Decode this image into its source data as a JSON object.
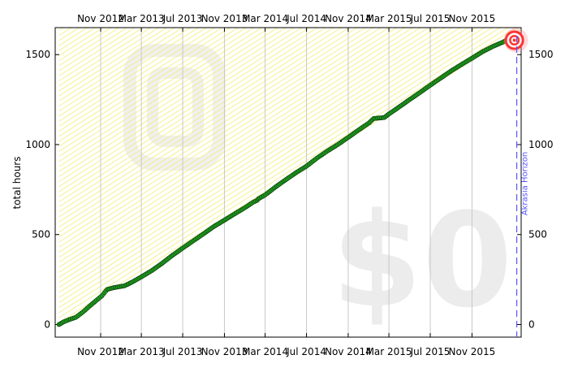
{
  "chart_data": {
    "type": "line",
    "title": "",
    "ylabel": "total hours",
    "xlabel": "",
    "ylim": [
      -70,
      1650
    ],
    "x_range": [
      "2012-06-20",
      "2016-03-25"
    ],
    "y_ticks": [
      0,
      500,
      1000,
      1500
    ],
    "x_ticks": [
      {
        "date": "2012-11-01",
        "label": "Nov 2012"
      },
      {
        "date": "2013-03-01",
        "label": "Mar 2013"
      },
      {
        "date": "2013-07-01",
        "label": "Jul 2013"
      },
      {
        "date": "2013-11-01",
        "label": "Nov 2013"
      },
      {
        "date": "2014-03-01",
        "label": "Mar 2014"
      },
      {
        "date": "2014-07-01",
        "label": "Jul 2014"
      },
      {
        "date": "2014-11-01",
        "label": "Nov 2014"
      },
      {
        "date": "2015-03-01",
        "label": "Mar 2015"
      },
      {
        "date": "2015-07-01",
        "label": "Jul 2015"
      },
      {
        "date": "2015-11-01",
        "label": "Nov 2015"
      }
    ],
    "grid": "vertical",
    "watermark_pledge": "$0",
    "horizon": {
      "date": "2016-03-12",
      "label": "Akrasia Horizon"
    },
    "goal": {
      "date": "2016-03-05",
      "value": 1580
    },
    "series": [
      {
        "points": [
          [
            "2012-07-01",
            0
          ],
          [
            "2012-07-15",
            15
          ],
          [
            "2012-08-01",
            28
          ],
          [
            "2012-08-20",
            40
          ],
          [
            "2012-09-10",
            70
          ],
          [
            "2012-10-01",
            105
          ],
          [
            "2012-10-20",
            135
          ],
          [
            "2012-11-05",
            160
          ],
          [
            "2012-11-20",
            195
          ],
          [
            "2012-12-10",
            205
          ],
          [
            "2012-12-25",
            210
          ],
          [
            "2013-01-10",
            215
          ],
          [
            "2013-02-01",
            235
          ],
          [
            "2013-03-01",
            265
          ],
          [
            "2013-04-01",
            300
          ],
          [
            "2013-05-01",
            340
          ],
          [
            "2013-06-01",
            385
          ],
          [
            "2013-07-01",
            425
          ],
          [
            "2013-08-01",
            465
          ],
          [
            "2013-09-01",
            505
          ],
          [
            "2013-10-01",
            545
          ],
          [
            "2013-11-01",
            580
          ],
          [
            "2013-12-01",
            615
          ],
          [
            "2014-01-01",
            650
          ],
          [
            "2014-01-25",
            680
          ],
          [
            "2014-02-05",
            690
          ],
          [
            "2014-02-10",
            700
          ],
          [
            "2014-03-01",
            720
          ],
          [
            "2014-04-01",
            765
          ],
          [
            "2014-05-01",
            805
          ],
          [
            "2014-06-01",
            845
          ],
          [
            "2014-07-01",
            880
          ],
          [
            "2014-08-01",
            925
          ],
          [
            "2014-09-01",
            965
          ],
          [
            "2014-10-01",
            1000
          ],
          [
            "2014-11-01",
            1040
          ],
          [
            "2014-12-01",
            1080
          ],
          [
            "2015-01-01",
            1120
          ],
          [
            "2015-01-15",
            1145
          ],
          [
            "2015-02-15",
            1150
          ],
          [
            "2015-03-01",
            1170
          ],
          [
            "2015-04-01",
            1210
          ],
          [
            "2015-05-01",
            1250
          ],
          [
            "2015-06-01",
            1290
          ],
          [
            "2015-07-01",
            1330
          ],
          [
            "2015-08-01",
            1370
          ],
          [
            "2015-09-01",
            1410
          ],
          [
            "2015-10-01",
            1445
          ],
          [
            "2015-11-01",
            1480
          ],
          [
            "2015-12-01",
            1515
          ],
          [
            "2016-01-01",
            1545
          ],
          [
            "2016-02-01",
            1570
          ],
          [
            "2016-02-20",
            1590
          ]
        ]
      }
    ]
  }
}
